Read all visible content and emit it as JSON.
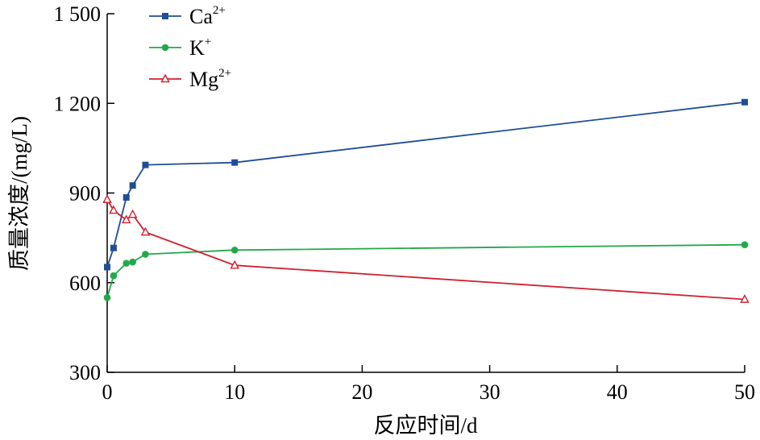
{
  "chart_data": {
    "type": "line",
    "xlabel": "反应时间/d",
    "ylabel": "质量浓度/(mg/L)",
    "xlim": [
      0,
      50
    ],
    "ylim": [
      300,
      1500
    ],
    "xticks": [
      0,
      10,
      20,
      30,
      40,
      50
    ],
    "xtick_labels": [
      "0",
      "10",
      "20",
      "30",
      "40",
      "50"
    ],
    "yticks": [
      300,
      600,
      900,
      1200,
      1500
    ],
    "ytick_labels": [
      "300",
      "600",
      "900",
      "1 200",
      "1 500"
    ],
    "grid": false,
    "legend_position": "top-left",
    "series": [
      {
        "name": "Ca",
        "superscript": "2+",
        "color": "#1f4e96",
        "marker": "square",
        "x": [
          0,
          0.5,
          1.5,
          2,
          3,
          10,
          50
        ],
        "y": [
          652,
          716,
          885,
          925,
          994,
          1002,
          1204
        ]
      },
      {
        "name": "K",
        "superscript": "+",
        "color": "#22a84a",
        "marker": "circle",
        "x": [
          0,
          0.5,
          1.5,
          2,
          3,
          10,
          50
        ],
        "y": [
          550,
          623,
          665,
          669,
          695,
          709,
          727
        ]
      },
      {
        "name": "Mg",
        "superscript": "2+",
        "color": "#d0202e",
        "marker": "triangle",
        "x": [
          0,
          0.5,
          1.5,
          2,
          3,
          10,
          50
        ],
        "y": [
          878,
          842,
          810,
          828,
          769,
          658,
          544
        ]
      }
    ]
  }
}
